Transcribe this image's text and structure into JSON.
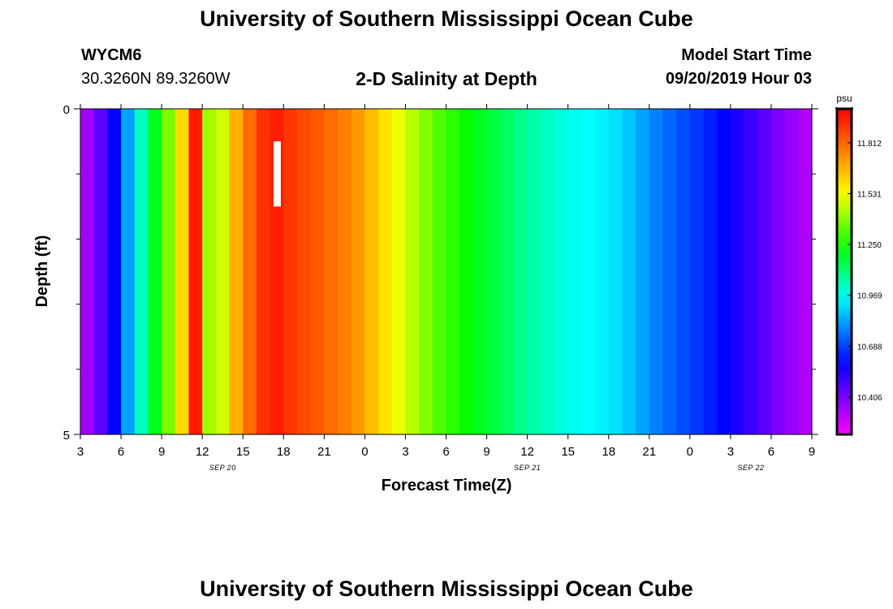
{
  "header": {
    "title": "University of Southern Mississippi Ocean Cube",
    "station_id": "WYCM6",
    "station_coords": "30.3260N 89.3260W",
    "plot_title": "2-D Salinity at Depth",
    "model_start_label": "Model Start Time",
    "model_start_value": "09/20/2019 Hour 03"
  },
  "footer": {
    "title": "University of Southern Mississippi Ocean Cube"
  },
  "chart_data": {
    "type": "heatmap",
    "title": "2-D Salinity at Depth",
    "xlabel": "Forecast Time(Z)",
    "ylabel": "Depth (ft)",
    "x_tick_labels": [
      "3",
      "6",
      "9",
      "12",
      "15",
      "18",
      "21",
      "0",
      "3",
      "6",
      "9",
      "12",
      "15",
      "18",
      "21",
      "0",
      "3",
      "6",
      "9"
    ],
    "date_labels": [
      {
        "label": "SEP 20",
        "tick_index": 3.5
      },
      {
        "label": "SEP 21",
        "tick_index": 11
      },
      {
        "label": "SEP 22",
        "tick_index": 16.5
      }
    ],
    "y_tick_labels": [
      {
        "label": "0",
        "value": 0
      },
      {
        "label": "5",
        "value": 5
      }
    ],
    "ylim": [
      0,
      5
    ],
    "y_minor_ticks": [
      1,
      2,
      3,
      4
    ],
    "colorbar": {
      "unit": "psu",
      "min": 10.2,
      "max": 12.0,
      "tick_values": [
        10.406,
        10.688,
        10.969,
        11.25,
        11.531,
        11.812
      ],
      "tick_labels": [
        "10.406",
        "10.688",
        "10.969",
        "11.250",
        "11.531",
        "11.812"
      ]
    },
    "salinity_by_forecast_hour": [
      [
        0,
        10.3
      ],
      [
        2,
        10.5
      ],
      [
        3,
        10.7
      ],
      [
        4,
        10.95
      ],
      [
        5,
        11.1
      ],
      [
        6,
        11.3
      ],
      [
        7,
        11.45
      ],
      [
        8,
        11.75
      ],
      [
        8.5,
        11.95
      ],
      [
        9,
        11.5
      ],
      [
        10,
        11.35
      ],
      [
        11,
        11.6
      ],
      [
        12,
        11.75
      ],
      [
        13,
        11.85
      ],
      [
        14,
        11.97
      ],
      [
        15,
        11.92
      ],
      [
        16,
        11.88
      ],
      [
        18,
        11.82
      ],
      [
        20,
        11.75
      ],
      [
        22,
        11.62
      ],
      [
        24,
        11.48
      ],
      [
        26,
        11.35
      ],
      [
        28,
        11.25
      ],
      [
        30,
        11.18
      ],
      [
        32,
        11.1
      ],
      [
        34,
        11.03
      ],
      [
        36,
        10.98
      ],
      [
        38,
        10.95
      ],
      [
        40,
        10.9
      ],
      [
        42,
        10.8
      ],
      [
        44,
        10.72
      ],
      [
        46,
        10.66
      ],
      [
        48,
        10.58
      ],
      [
        50,
        10.48
      ],
      [
        52,
        10.38
      ],
      [
        54,
        10.3
      ]
    ],
    "annotation": {
      "kind": "white-bar",
      "forecast_hour": 14.5,
      "depth_top": 0.5,
      "depth_bottom": 1.5
    }
  }
}
